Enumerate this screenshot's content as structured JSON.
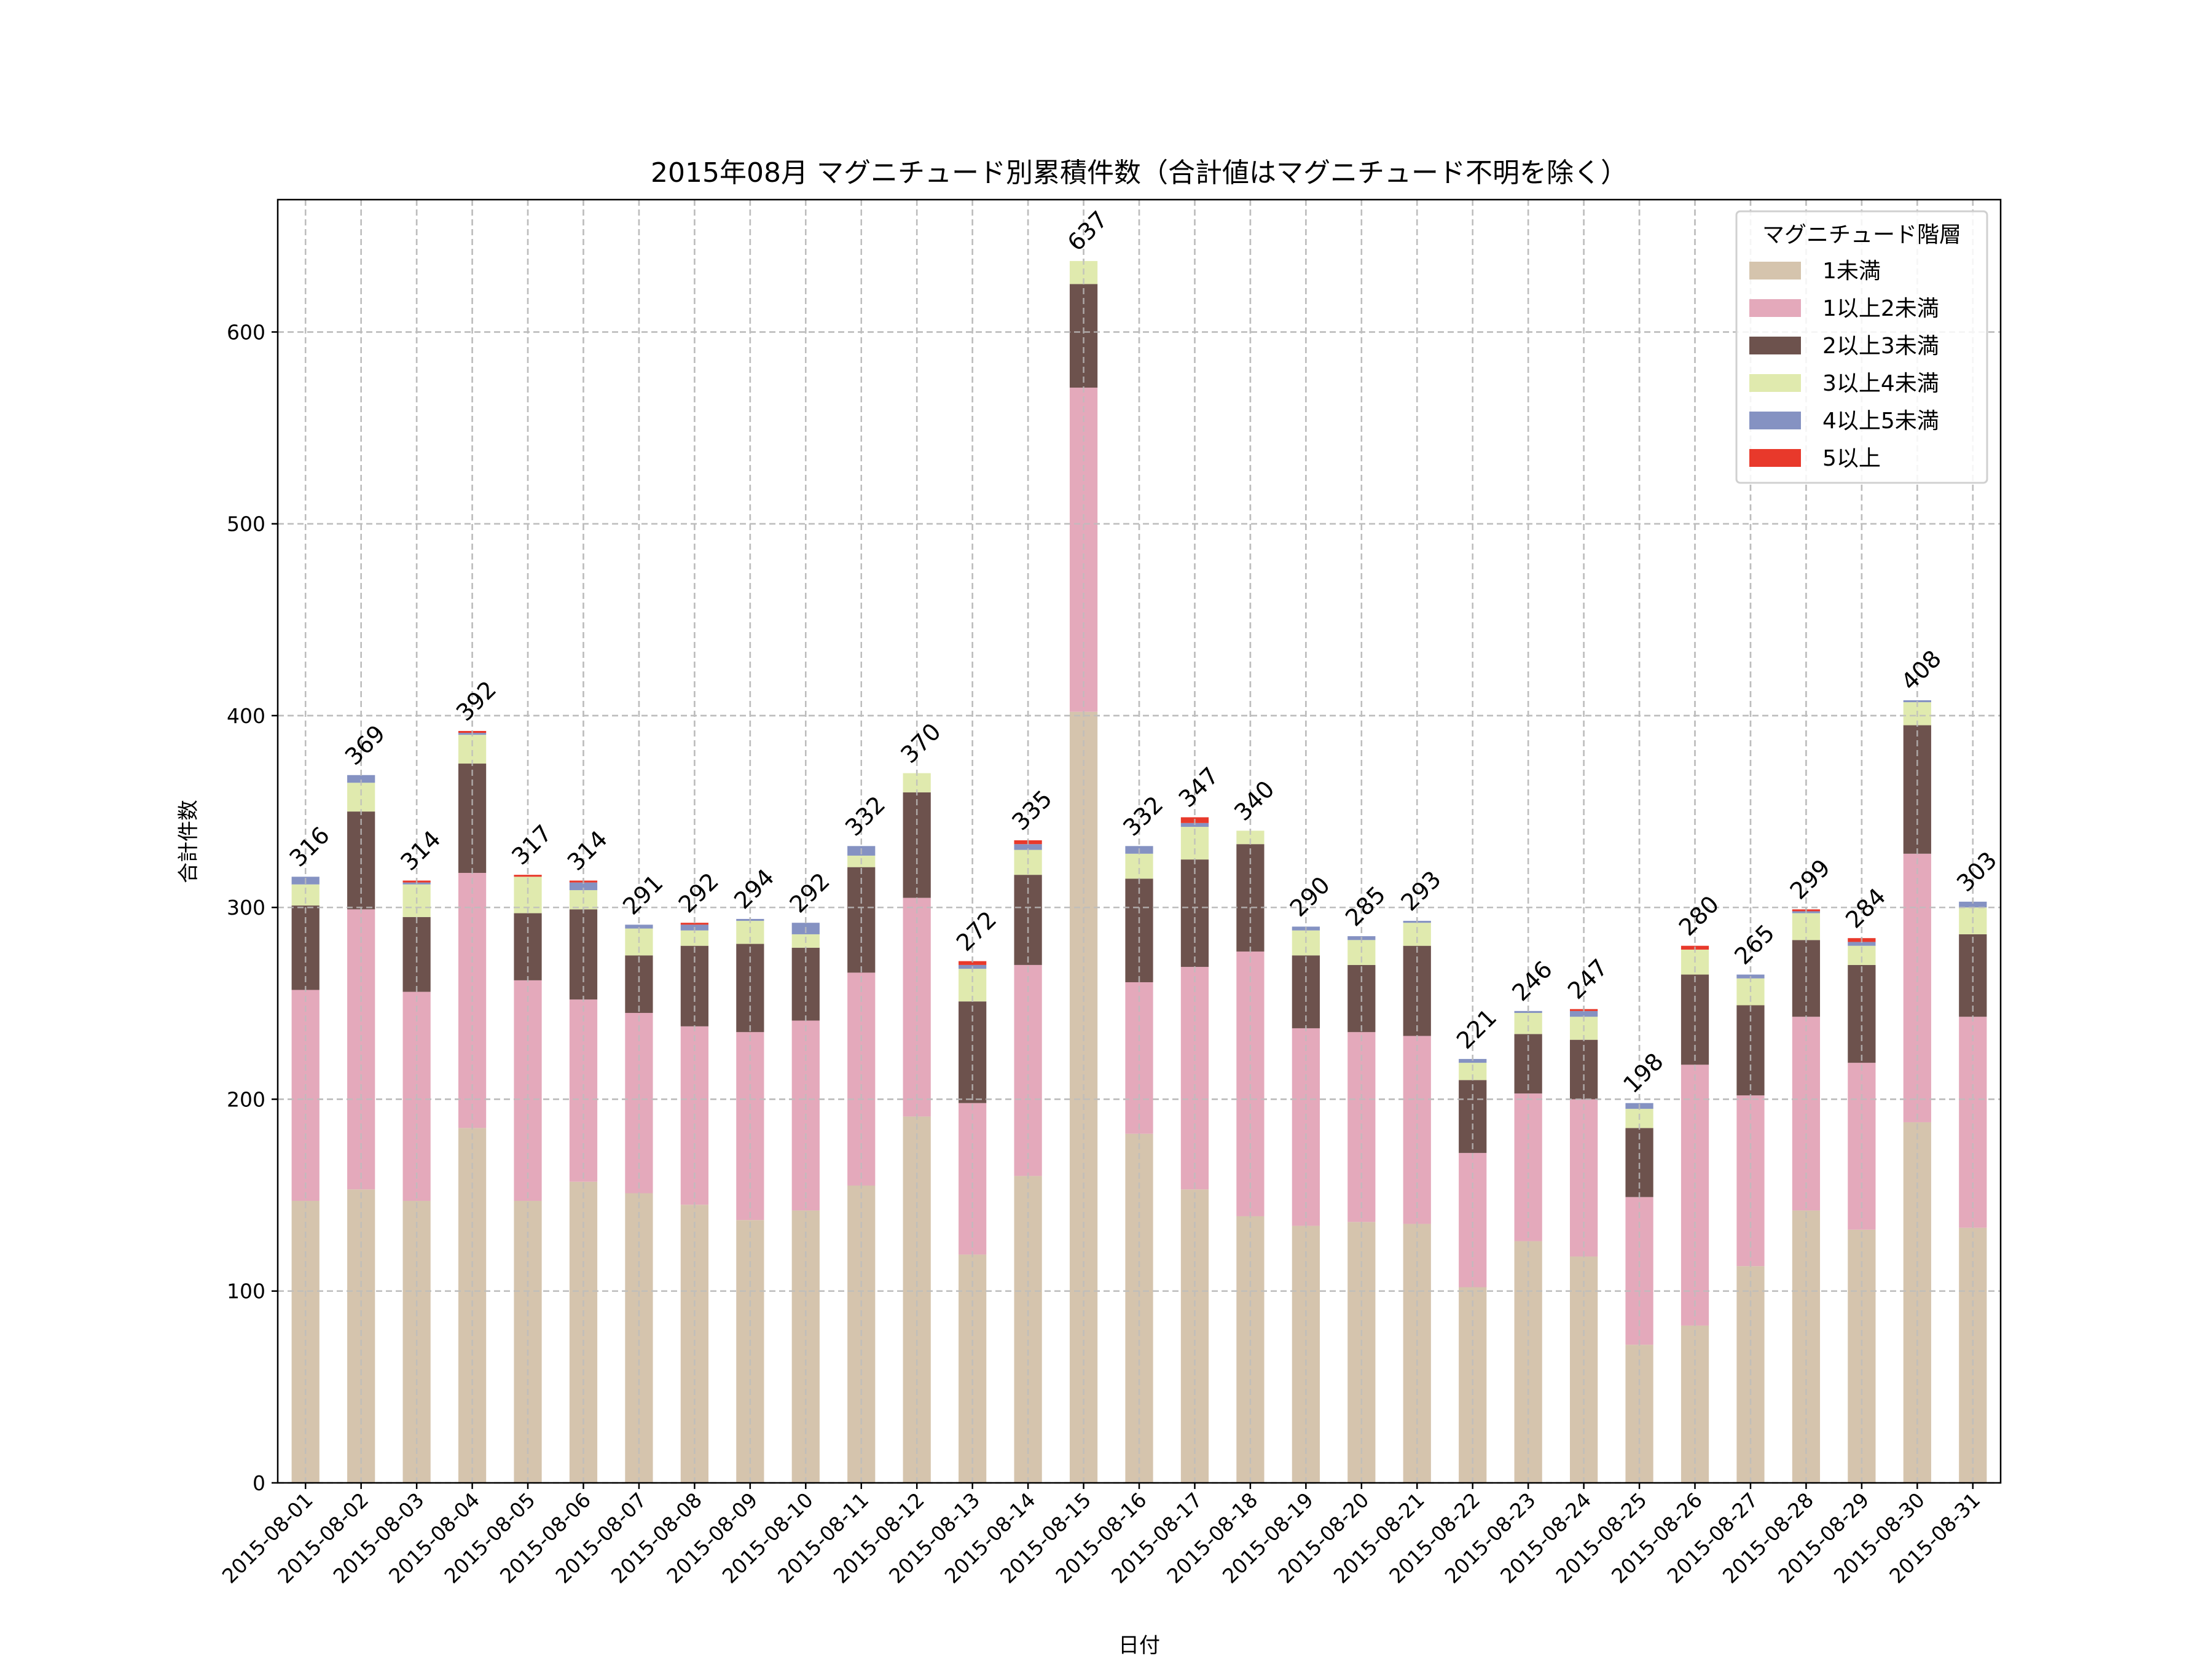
{
  "chart_data": {
    "type": "bar",
    "stacked": true,
    "title": "2015年08月 マグニチュード別累積件数（合計値はマグニチュード不明を除く）",
    "xlabel": "日付",
    "ylabel": "合計件数",
    "ylim": [
      0,
      669
    ],
    "yticks": [
      0,
      100,
      200,
      300,
      400,
      500,
      600
    ],
    "grid": true,
    "legend": {
      "title": "マグニチュード階層",
      "placement": "top-right"
    },
    "categories": [
      "2015-08-01",
      "2015-08-02",
      "2015-08-03",
      "2015-08-04",
      "2015-08-05",
      "2015-08-06",
      "2015-08-07",
      "2015-08-08",
      "2015-08-09",
      "2015-08-10",
      "2015-08-11",
      "2015-08-12",
      "2015-08-13",
      "2015-08-14",
      "2015-08-15",
      "2015-08-16",
      "2015-08-17",
      "2015-08-18",
      "2015-08-19",
      "2015-08-20",
      "2015-08-21",
      "2015-08-22",
      "2015-08-23",
      "2015-08-24",
      "2015-08-25",
      "2015-08-26",
      "2015-08-27",
      "2015-08-28",
      "2015-08-29",
      "2015-08-30",
      "2015-08-31"
    ],
    "series": [
      {
        "name": "1未満",
        "color": "#d5c4ad",
        "values": [
          147,
          153,
          147,
          185,
          147,
          157,
          151,
          145,
          137,
          142,
          155,
          191,
          119,
          160,
          402,
          182,
          153,
          139,
          134,
          136,
          135,
          102,
          126,
          118,
          72,
          82,
          113,
          142,
          132,
          188,
          133
        ]
      },
      {
        "name": "1以上2未満",
        "color": "#e4a9bb",
        "values": [
          110,
          146,
          109,
          133,
          115,
          95,
          94,
          93,
          98,
          99,
          111,
          114,
          79,
          110,
          169,
          79,
          116,
          138,
          103,
          99,
          98,
          70,
          77,
          82,
          77,
          136,
          89,
          101,
          87,
          140,
          110
        ]
      },
      {
        "name": "2以上3未満",
        "color": "#6d524d",
        "values": [
          44,
          51,
          39,
          57,
          35,
          47,
          30,
          42,
          46,
          38,
          55,
          55,
          53,
          47,
          54,
          54,
          56,
          56,
          38,
          35,
          47,
          38,
          31,
          31,
          36,
          47,
          47,
          40,
          51,
          67,
          43
        ]
      },
      {
        "name": "3以上4未満",
        "color": "#e0eaae",
        "values": [
          11,
          15,
          17,
          15,
          19,
          10,
          14,
          8,
          12,
          7,
          6,
          10,
          17,
          13,
          12,
          13,
          17,
          7,
          13,
          13,
          12,
          9,
          11,
          12,
          10,
          13,
          14,
          14,
          10,
          12,
          14
        ]
      },
      {
        "name": "4以上5未満",
        "color": "#8592c2",
        "values": [
          4,
          4,
          1,
          1,
          0,
          4,
          2,
          3,
          1,
          6,
          5,
          0,
          2,
          3,
          0,
          4,
          2,
          0,
          2,
          2,
          1,
          2,
          1,
          3,
          3,
          0,
          2,
          1,
          2,
          1,
          3
        ]
      },
      {
        "name": "5以上",
        "color": "#e8392b",
        "values": [
          0,
          0,
          1,
          1,
          1,
          1,
          0,
          1,
          0,
          0,
          0,
          0,
          2,
          2,
          0,
          0,
          3,
          0,
          0,
          0,
          0,
          0,
          0,
          1,
          0,
          2,
          0,
          1,
          2,
          0,
          0
        ]
      }
    ],
    "totals": [
      316,
      369,
      314,
      392,
      317,
      314,
      291,
      292,
      294,
      292,
      332,
      370,
      272,
      335,
      637,
      332,
      347,
      340,
      290,
      285,
      293,
      221,
      246,
      247,
      198,
      280,
      265,
      299,
      284,
      408,
      303
    ]
  }
}
